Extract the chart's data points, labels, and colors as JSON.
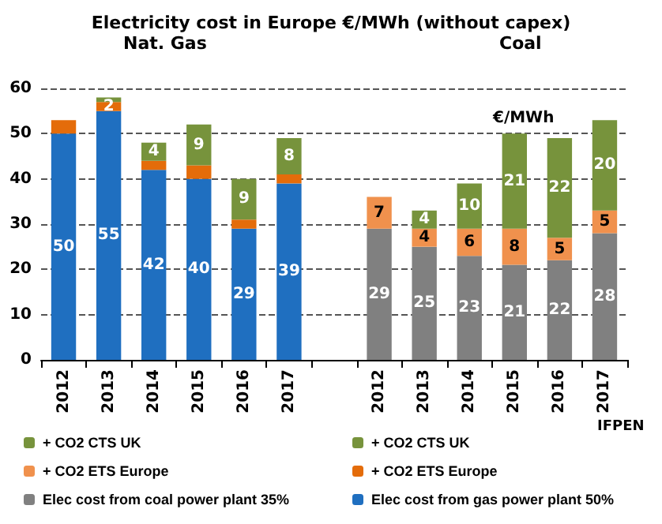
{
  "chart_data": {
    "type": "bar",
    "stacked": true,
    "title": "Electricity cost in Europe €/MWh (without capex)",
    "categories": [
      "2012",
      "2013",
      "2014",
      "2015",
      "2016",
      "2017",
      null,
      "2012",
      "2013",
      "2014",
      "2015",
      "2016",
      "2017"
    ],
    "ylim": [
      0,
      60
    ],
    "yticks": [
      0,
      10,
      20,
      30,
      40,
      50,
      60
    ],
    "grid": "y",
    "legend": "bottom",
    "annotations": [
      "Nat. Gas",
      "Coal",
      "€/MWh",
      "IFPEN"
    ],
    "series": [
      {
        "name": "Elec cost from gas power plant 50%",
        "color": "#1f6fc0",
        "values": [
          50,
          55,
          42,
          40,
          29,
          39,
          null,
          null,
          null,
          null,
          null,
          null,
          null
        ],
        "value_labels": [
          "50",
          "55",
          "42",
          "40",
          "29",
          "39",
          null,
          null,
          null,
          null,
          null,
          null,
          null
        ]
      },
      {
        "name": "+ CO2 ETS Europe",
        "color": "#e46c0a",
        "values": [
          3,
          2,
          2,
          3,
          2,
          2,
          null,
          null,
          null,
          null,
          null,
          null,
          null
        ],
        "value_labels": [
          null,
          "2",
          null,
          null,
          null,
          null,
          null,
          null,
          null,
          null,
          null,
          null,
          null
        ]
      },
      {
        "name": "+ CO2 CTS UK",
        "color": "#77933c",
        "values": [
          null,
          1,
          4,
          9,
          9,
          8,
          null,
          null,
          null,
          null,
          null,
          null,
          null
        ],
        "value_labels": [
          null,
          null,
          "4",
          "9",
          "9",
          "8",
          null,
          null,
          null,
          null,
          null,
          null,
          null
        ]
      },
      {
        "name": "Elec cost from coal power plant 35%",
        "color": "#808080",
        "values": [
          null,
          null,
          null,
          null,
          null,
          null,
          null,
          29,
          25,
          23,
          21,
          22,
          28
        ],
        "value_labels": [
          null,
          null,
          null,
          null,
          null,
          null,
          null,
          "29",
          "25",
          "23",
          "21",
          "22",
          "28"
        ]
      },
      {
        "name": "+ CO2 ETS Europe",
        "color": "#f0914d",
        "values": [
          null,
          null,
          null,
          null,
          null,
          null,
          null,
          7,
          4,
          6,
          8,
          5,
          5
        ],
        "value_labels": [
          null,
          null,
          null,
          null,
          null,
          null,
          null,
          "7",
          "4",
          "6",
          "8",
          "5",
          "5"
        ]
      },
      {
        "name": "+ CO2 CTS UK",
        "color": "#77933c",
        "values": [
          null,
          null,
          null,
          null,
          null,
          null,
          null,
          null,
          4,
          10,
          21,
          22,
          20
        ],
        "value_labels": [
          null,
          null,
          null,
          null,
          null,
          null,
          null,
          null,
          "4",
          "10",
          "21",
          "22",
          "20"
        ]
      }
    ]
  }
}
